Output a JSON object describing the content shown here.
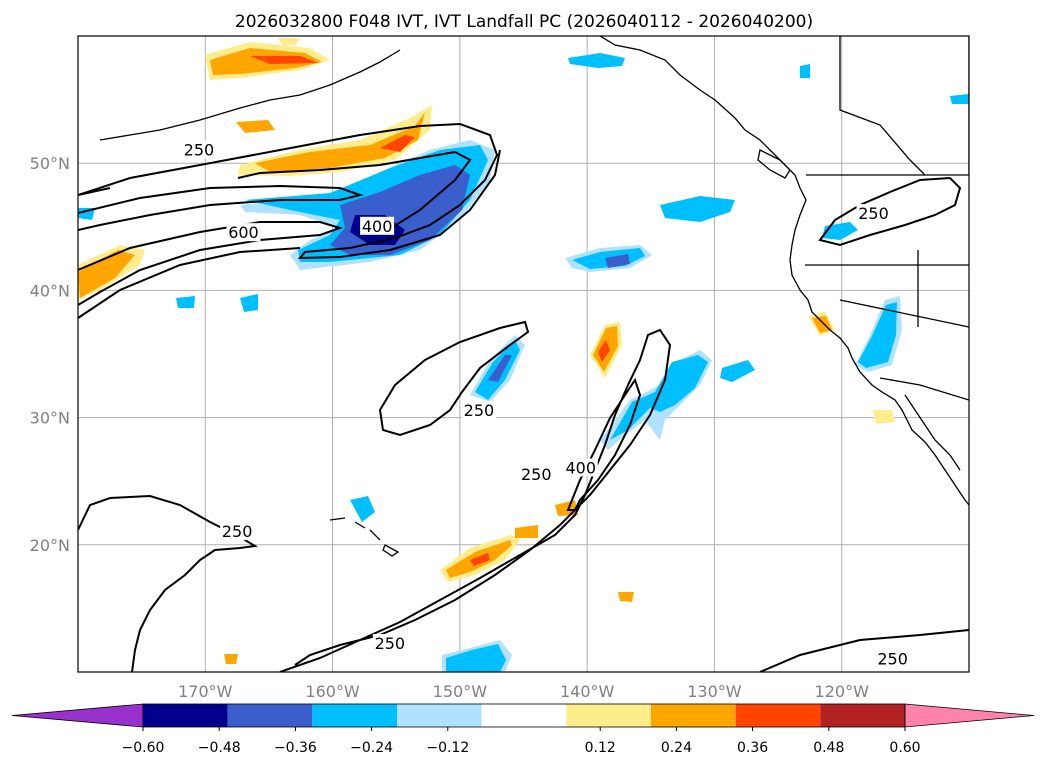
{
  "chart_data": {
    "type": "heatmap",
    "title": "2026032800 F048 IVT, IVT Landfall PC (2026040112 - 2026040200)",
    "xlabel": "",
    "ylabel": "",
    "lon_range": [
      -180,
      -110
    ],
    "lat_range": [
      10,
      60
    ],
    "x_ticks": [
      {
        "lon": -170,
        "label": "170°W"
      },
      {
        "lon": -160,
        "label": "160°W"
      },
      {
        "lon": -150,
        "label": "150°W"
      },
      {
        "lon": -140,
        "label": "140°W"
      },
      {
        "lon": -130,
        "label": "130°W"
      },
      {
        "lon": -120,
        "label": "120°W"
      }
    ],
    "y_ticks": [
      {
        "lat": 20,
        "label": "20°N"
      },
      {
        "lat": 30,
        "label": "30°N"
      },
      {
        "lat": 40,
        "label": "40°N"
      },
      {
        "lat": 50,
        "label": "50°N"
      }
    ],
    "colorbar": {
      "levels": [
        -0.6,
        -0.48,
        -0.36,
        -0.24,
        -0.12,
        0.12,
        0.24,
        0.36,
        0.48,
        0.6
      ],
      "tick_labels": [
        "−0.60",
        "−0.48",
        "−0.36",
        "−0.24",
        "−0.12",
        "0.12",
        "0.24",
        "0.36",
        "0.48",
        "0.60"
      ],
      "colors": [
        "#9932cc",
        "#00008b",
        "#3a5fcd",
        "#00bfff",
        "#b0e2ff",
        "#ffffff",
        "#ffec8b",
        "#ffa500",
        "#ff4500",
        "#b22222",
        "#ff82ab"
      ],
      "extend": "both"
    },
    "ivt_contour_levels": [
      250,
      400,
      600
    ],
    "contour_labels": [
      {
        "text": "250",
        "lon": -170.5,
        "lat": 51.0
      },
      {
        "text": "600",
        "lon": -167.0,
        "lat": 44.5
      },
      {
        "text": "400",
        "lon": -156.5,
        "lat": 45.0
      },
      {
        "text": "250",
        "lon": -148.5,
        "lat": 30.5
      },
      {
        "text": "250",
        "lon": -144.0,
        "lat": 25.5
      },
      {
        "text": "400",
        "lon": -140.5,
        "lat": 26.0
      },
      {
        "text": "250",
        "lon": -167.5,
        "lat": 21.0
      },
      {
        "text": "250",
        "lon": -155.5,
        "lat": 12.2
      },
      {
        "text": "250",
        "lon": -116.0,
        "lat": 11.0
      },
      {
        "text": "250",
        "lon": -117.5,
        "lat": 46.0
      }
    ]
  }
}
